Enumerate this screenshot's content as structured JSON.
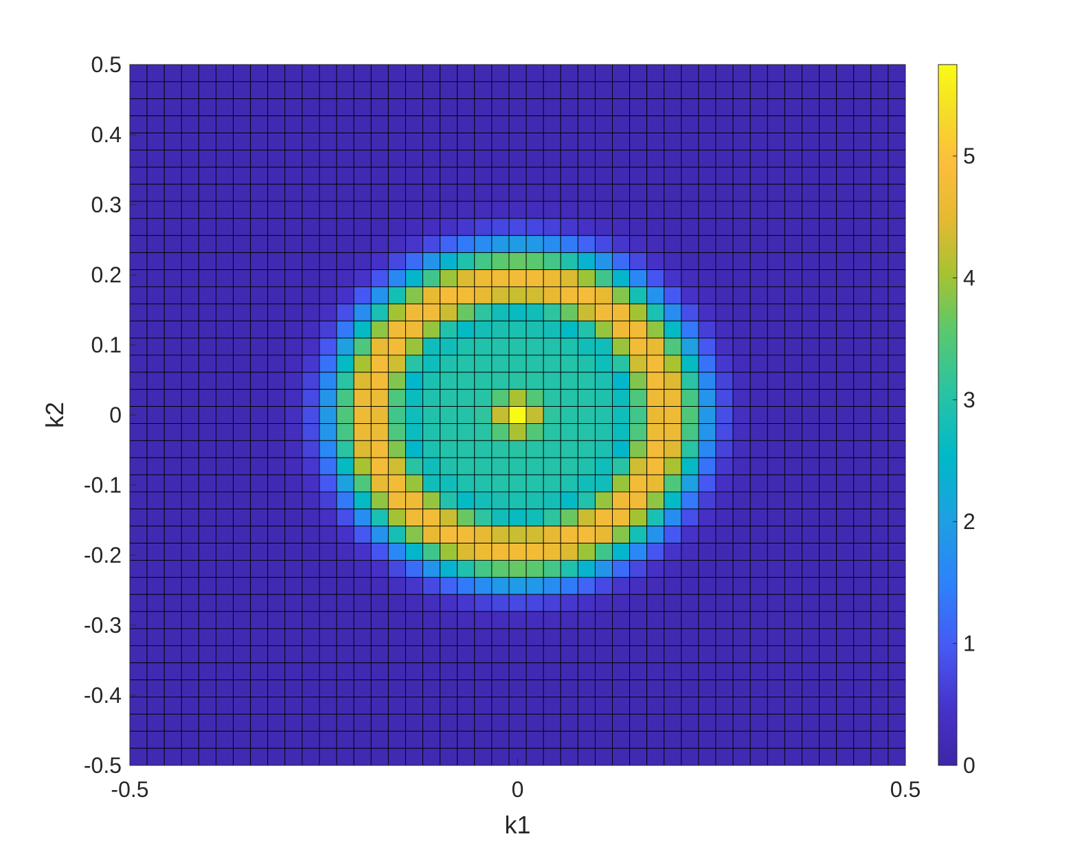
{
  "chart_data": {
    "type": "heatmap",
    "title": "",
    "xlabel": "k1",
    "ylabel": "k2",
    "xlim": [
      -0.5,
      0.5
    ],
    "ylim": [
      -0.5,
      0.5
    ],
    "grid_rows": 41,
    "grid_cols": 45,
    "cell_edges": true,
    "x_ticks": [
      {
        "value": -0.5,
        "label": "-0.5"
      },
      {
        "value": 0,
        "label": "0"
      },
      {
        "value": 0.5,
        "label": "0.5"
      }
    ],
    "y_ticks": [
      {
        "value": 0.5,
        "label": "0.5"
      },
      {
        "value": 0.4,
        "label": "0.4"
      },
      {
        "value": 0.3,
        "label": "0.3"
      },
      {
        "value": 0.2,
        "label": "0.2"
      },
      {
        "value": 0.1,
        "label": "0.1"
      },
      {
        "value": 0,
        "label": "0"
      },
      {
        "value": -0.1,
        "label": "-0.1"
      },
      {
        "value": -0.2,
        "label": "-0.2"
      },
      {
        "value": -0.3,
        "label": "-0.3"
      },
      {
        "value": -0.4,
        "label": "-0.4"
      },
      {
        "value": -0.5,
        "label": "-0.5"
      }
    ],
    "colorbar": {
      "colormap": "parula",
      "range": [
        0,
        5.75
      ],
      "ticks": [
        {
          "value": 0,
          "label": "0"
        },
        {
          "value": 1,
          "label": "1"
        },
        {
          "value": 2,
          "label": "2"
        },
        {
          "value": 3,
          "label": "3"
        },
        {
          "value": 4,
          "label": "4"
        },
        {
          "value": 5,
          "label": "5"
        }
      ]
    },
    "radial_profile": {
      "description_of_values": "value as a function of radius r = sqrt(k1^2 + k2^2)",
      "center_value": 5.75,
      "inner_plateau_value": 3.0,
      "ring_peak_value": 4.8,
      "ring_peak_radius": 0.19,
      "outer_value": 0.15
    }
  },
  "colors": {
    "edge": "#000000",
    "axis": "#262626",
    "background": "#ffffff"
  }
}
